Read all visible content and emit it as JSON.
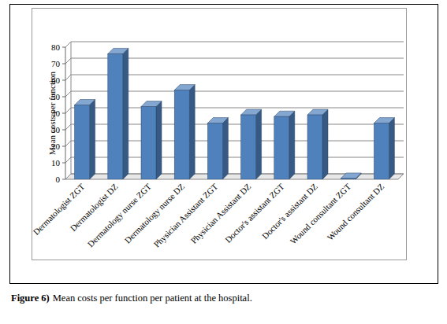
{
  "chart_data": {
    "type": "bar",
    "y_label": "Mean costs per function",
    "categories": [
      "Dermatologist ZGT",
      "Dermatologist DZ",
      "Dermatology nurse ZGT",
      "Dermatology nurse DZ",
      "Physician Assistant ZGT",
      "Physician Assistant DZ",
      "Doctor's assistant ZGT",
      "Doctor's assistant DZ",
      "Wound consultant ZGT",
      "Wound consultant DZ"
    ],
    "values": [
      45,
      76,
      44,
      54,
      34,
      39,
      38,
      39,
      0.5,
      34
    ],
    "color": "#4f81bd",
    "ylim": [
      0,
      80
    ],
    "yticks": [
      0,
      10,
      20,
      30,
      40,
      50,
      60,
      70,
      80
    ],
    "grid": true,
    "annotations": [
      "Figure 6)",
      "Mean costs per function per patient at the hospital."
    ]
  }
}
